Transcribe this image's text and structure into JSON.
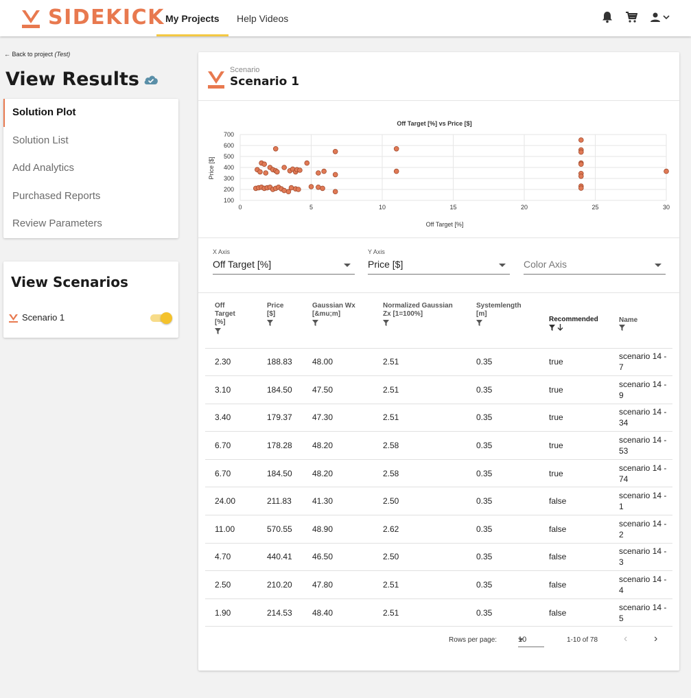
{
  "brand": {
    "name": "SIDEKICK",
    "accent": "#e8794f",
    "highlight": "#f4c842"
  },
  "nav": {
    "tabs": [
      "My Projects",
      "Help Videos"
    ]
  },
  "back_link": {
    "prefix": "← Back to project ",
    "project": "(Test)"
  },
  "page_title": "View Results",
  "menu": [
    "Solution Plot",
    "Solution List",
    "Add Analytics",
    "Purchased Reports",
    "Review Parameters"
  ],
  "scenarios_panel": {
    "title": "View Scenarios",
    "items": [
      {
        "name": "Scenario 1",
        "enabled": true
      }
    ]
  },
  "scenario_header": {
    "label": "Scenario",
    "name": "Scenario 1"
  },
  "chart_data": {
    "type": "scatter",
    "title": "Off Target [%] vs Price [$]",
    "xlabel": "Off Target [%]",
    "ylabel": "Price [$]",
    "xlim": [
      0,
      30
    ],
    "ylim": [
      100,
      700
    ],
    "xticks": [
      0,
      5,
      10,
      15,
      20,
      25,
      30
    ],
    "yticks": [
      100,
      200,
      300,
      400,
      500,
      600,
      700
    ],
    "grid": true,
    "marker_color": "#e07a56",
    "points": [
      [
        1.2,
        380
      ],
      [
        1.4,
        360
      ],
      [
        1.5,
        440
      ],
      [
        1.7,
        430
      ],
      [
        1.8,
        350
      ],
      [
        2.1,
        400
      ],
      [
        2.3,
        380
      ],
      [
        2.5,
        370
      ],
      [
        2.6,
        360
      ],
      [
        2.5,
        570
      ],
      [
        3.1,
        400
      ],
      [
        3.5,
        370
      ],
      [
        3.7,
        385
      ],
      [
        3.9,
        360
      ],
      [
        4.0,
        380
      ],
      [
        4.2,
        375
      ],
      [
        4.7,
        440
      ],
      [
        5.5,
        350
      ],
      [
        5.9,
        365
      ],
      [
        6.7,
        335
      ],
      [
        6.7,
        545
      ],
      [
        1.1,
        210
      ],
      [
        1.3,
        215
      ],
      [
        1.5,
        220
      ],
      [
        1.7,
        210
      ],
      [
        1.9,
        215
      ],
      [
        2.1,
        220
      ],
      [
        2.3,
        200
      ],
      [
        2.5,
        210
      ],
      [
        2.7,
        220
      ],
      [
        2.9,
        205
      ],
      [
        3.1,
        190
      ],
      [
        3.4,
        180
      ],
      [
        3.6,
        215
      ],
      [
        3.9,
        205
      ],
      [
        4.1,
        200
      ],
      [
        5.0,
        225
      ],
      [
        5.5,
        220
      ],
      [
        5.8,
        210
      ],
      [
        6.7,
        180
      ],
      [
        11.0,
        570
      ],
      [
        11.0,
        365
      ],
      [
        24.0,
        650
      ],
      [
        24.0,
        560
      ],
      [
        24.0,
        540
      ],
      [
        24.0,
        440
      ],
      [
        24.0,
        430
      ],
      [
        24.0,
        345
      ],
      [
        24.0,
        320
      ],
      [
        24.0,
        230
      ],
      [
        24.0,
        212
      ],
      [
        30.0,
        365
      ]
    ]
  },
  "axis_selectors": [
    {
      "label": "X Axis",
      "value": "Off Target [%]"
    },
    {
      "label": "Y Axis",
      "value": "Price [$]"
    },
    {
      "label": "",
      "value": "Color Axis"
    }
  ],
  "table": {
    "columns": [
      [
        "Off",
        "Target",
        "[%]"
      ],
      [
        "Price",
        "[$]"
      ],
      [
        "Gaussian Wx",
        "[&mu;m]"
      ],
      [
        "Normalized Gaussian",
        "Zx [1=100%]"
      ],
      [
        "Systemlength",
        "[m]"
      ],
      [
        "Recommended"
      ],
      [
        "Name"
      ]
    ],
    "rows": [
      [
        "2.30",
        "188.83",
        "48.00",
        "2.51",
        "0.35",
        "true",
        "scenario 14 - 7"
      ],
      [
        "3.10",
        "184.50",
        "47.50",
        "2.51",
        "0.35",
        "true",
        "scenario 14 - 9"
      ],
      [
        "3.40",
        "179.37",
        "47.30",
        "2.51",
        "0.35",
        "true",
        "scenario 14 - 34"
      ],
      [
        "6.70",
        "178.28",
        "48.20",
        "2.58",
        "0.35",
        "true",
        "scenario 14 - 53"
      ],
      [
        "6.70",
        "184.50",
        "48.20",
        "2.58",
        "0.35",
        "true",
        "scenario 14 - 74"
      ],
      [
        "24.00",
        "211.83",
        "41.30",
        "2.50",
        "0.35",
        "false",
        "scenario 14 - 1"
      ],
      [
        "11.00",
        "570.55",
        "48.90",
        "2.62",
        "0.35",
        "false",
        "scenario 14 - 2"
      ],
      [
        "4.70",
        "440.41",
        "46.50",
        "2.50",
        "0.35",
        "false",
        "scenario 14 - 3"
      ],
      [
        "2.50",
        "210.20",
        "47.80",
        "2.51",
        "0.35",
        "false",
        "scenario 14 - 4"
      ],
      [
        "1.90",
        "214.53",
        "48.40",
        "2.51",
        "0.35",
        "false",
        "scenario 14 - 5"
      ]
    ]
  },
  "pagination": {
    "rows_per_page_label": "Rows per page:",
    "rows_per_page": "10",
    "range": "1-10 of 78"
  }
}
